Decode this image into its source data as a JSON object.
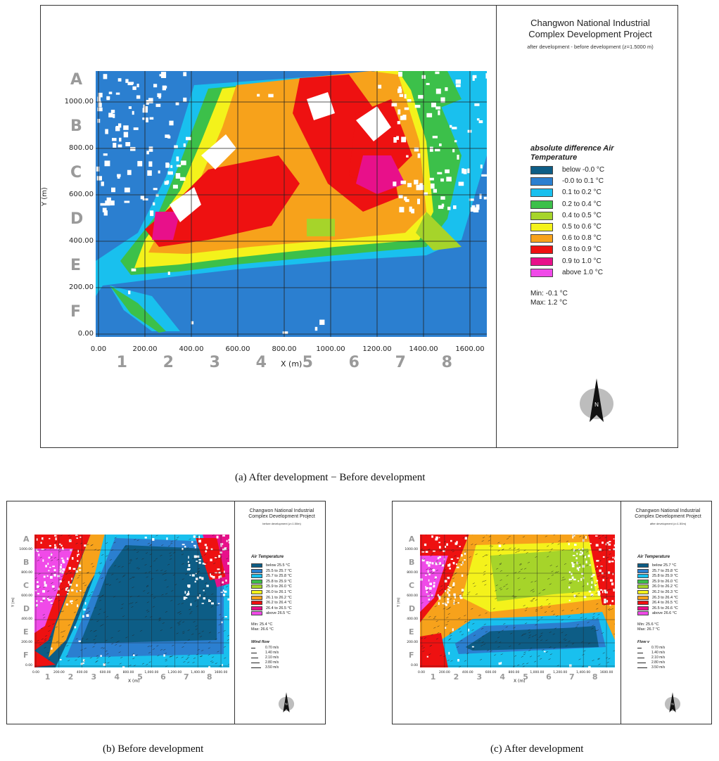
{
  "panel_a": {
    "title_line1": "Changwon National Industrial",
    "title_line2": "Complex Development Project",
    "subtitle": "after development - before development (z=1.5000 m)",
    "legend_title_line1": "absolute difference Air",
    "legend_title_line2": "Temperature",
    "legend_items": [
      {
        "label": "below -0.0 °C",
        "color": "#0d5d86"
      },
      {
        "label": "-0.0 to 0.1 °C",
        "color": "#2b7fd0"
      },
      {
        "label": "0.1 to 0.2 °C",
        "color": "#19c0ee"
      },
      {
        "label": "0.2 to 0.4 °C",
        "color": "#3cc04a"
      },
      {
        "label": "0.4 to 0.5 °C",
        "color": "#a6d42a"
      },
      {
        "label": "0.5 to 0.6 °C",
        "color": "#f4f21b"
      },
      {
        "label": "0.6 to 0.8 °C",
        "color": "#f7a21b"
      },
      {
        "label": "0.8 to 0.9 °C",
        "color": "#ee1111"
      },
      {
        "label": "0.9 to 1.0 °C",
        "color": "#e8108a"
      },
      {
        "label": "above 1.0 °C",
        "color": "#f04ae8"
      }
    ],
    "min_text": "Min: -0.1 °C",
    "max_text": "Max: 1.2 °C",
    "y_ticks": [
      "1000.00",
      "800.00",
      "600.00",
      "400.00",
      "200.00",
      "0.00"
    ],
    "x_ticks": [
      "0.00",
      "200.00",
      "400.00",
      "600.00",
      "800.00",
      "1000.00",
      "1200.00",
      "1400.00",
      "1600.00"
    ],
    "row_letters": [
      "A",
      "B",
      "C",
      "D",
      "E",
      "F"
    ],
    "col_numbers": [
      "1",
      "2",
      "3",
      "4",
      "5",
      "6",
      "7",
      "8"
    ],
    "ylabel": "Y (m)",
    "xlabel": "X (m)",
    "compass": "N",
    "caption": "(a)  After development − Before development"
  },
  "panel_b": {
    "title_line1": "Changwon National Industrial",
    "title_line2": "Complex Development Project",
    "subtitle": "before development (z=1.50m)",
    "legend_title": "Air Temperature",
    "legend_items": [
      {
        "label": "below 25.5 °C",
        "color": "#0d5d86"
      },
      {
        "label": "25.5 to 25.7 °C",
        "color": "#2b7fd0"
      },
      {
        "label": "25.7 to 25.8 °C",
        "color": "#19c0ee"
      },
      {
        "label": "25.8 to 25.9 °C",
        "color": "#3cc04a"
      },
      {
        "label": "25.9 to 26.0 °C",
        "color": "#a6d42a"
      },
      {
        "label": "26.0 to 26.1 °C",
        "color": "#f4f21b"
      },
      {
        "label": "26.1 to 26.2 °C",
        "color": "#f7a21b"
      },
      {
        "label": "26.2 to 26.4 °C",
        "color": "#ee1111"
      },
      {
        "label": "26.4 to 26.5 °C",
        "color": "#e8108a"
      },
      {
        "label": "above 26.5 °C",
        "color": "#f04ae8"
      }
    ],
    "min_text": "Min: 25.4 °C",
    "max_text": "Max: 26.6 °C",
    "wind_title": "Wind flow",
    "wind_items": [
      "0.70 m/s",
      "1.40 m/s",
      "2.10 m/s",
      "2.80 m/s",
      "3.50 m/s"
    ],
    "y_ticks": [
      "1000.00",
      "800.00",
      "600.00",
      "400.00",
      "200.00",
      "0.00"
    ],
    "x_ticks": [
      "0.00",
      "200.00",
      "400.00",
      "600.00",
      "800.00",
      "1,000.00",
      "1,200.00",
      "1,400.00",
      "1600.00"
    ],
    "row_letters": [
      "A",
      "B",
      "C",
      "D",
      "E",
      "F"
    ],
    "col_numbers": [
      "1",
      "2",
      "3",
      "4",
      "5",
      "6",
      "7",
      "8"
    ],
    "ylabel": "Y (m)",
    "xlabel": "X (m)",
    "compass": "N",
    "caption": "(b)  Before  development"
  },
  "panel_c": {
    "title_line1": "Changwon National Industrial",
    "title_line2": "Complex Development Project",
    "subtitle": "after development (z=1.50m)",
    "legend_title": "Air Temperature",
    "legend_items": [
      {
        "label": "below 25.7 °C",
        "color": "#0d5d86"
      },
      {
        "label": "25.7 to 25.8 °C",
        "color": "#2b7fd0"
      },
      {
        "label": "25.8 to 25.9 °C",
        "color": "#19c0ee"
      },
      {
        "label": "25.9 to 26.0 °C",
        "color": "#3cc04a"
      },
      {
        "label": "26.0 to 26.2 °C",
        "color": "#a6d42a"
      },
      {
        "label": "26.2 to 26.3 °C",
        "color": "#f4f21b"
      },
      {
        "label": "26.3 to 26.4 °C",
        "color": "#f7a21b"
      },
      {
        "label": "26.4 to 26.5 °C",
        "color": "#ee1111"
      },
      {
        "label": "26.5 to 26.6 °C",
        "color": "#e8108a"
      },
      {
        "label": "above 26.6 °C",
        "color": "#f04ae8"
      }
    ],
    "min_text": "Min: 25.6 °C",
    "max_text": "Max: 26.7 °C",
    "wind_title": "Flow v",
    "wind_items": [
      "0.70 m/s",
      "1.40 m/s",
      "2.10 m/s",
      "2.80 m/s",
      "3.50 m/s"
    ],
    "y_ticks": [
      "1000.00",
      "800.00",
      "600.00",
      "400.00",
      "200.00",
      "0.00"
    ],
    "x_ticks": [
      "0.00",
      "200.00",
      "400.00",
      "600.00",
      "800.00",
      "1,000.00",
      "1,200.00",
      "1,400.00",
      "1600.00"
    ],
    "row_letters": [
      "A",
      "B",
      "C",
      "D",
      "E",
      "F"
    ],
    "col_numbers": [
      "1",
      "2",
      "3",
      "4",
      "5",
      "6",
      "7",
      "8"
    ],
    "ylabel": "Y (m)",
    "xlabel": "X (m)",
    "compass": "N",
    "caption": "(c)  After  development"
  }
}
